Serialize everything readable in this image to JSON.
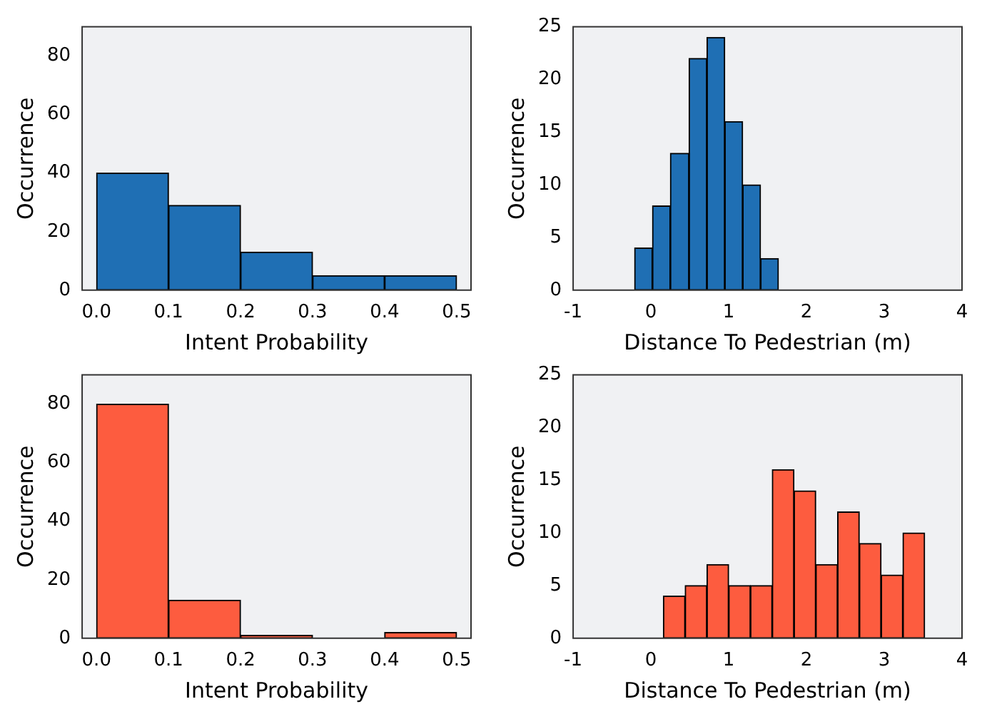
{
  "chart_data": [
    {
      "type": "histogram",
      "bins": [
        0,
        0.1,
        0.2,
        0.3,
        0.4,
        0.5
      ],
      "values": [
        40,
        29,
        13,
        5,
        5
      ],
      "color": "#1f6fb4",
      "xlabel": "Intent Probability",
      "ylabel": "Occurrence",
      "xlim": [
        -0.02,
        0.52
      ],
      "xticks": [
        {
          "value": 0,
          "label": "0.0"
        },
        0.1,
        0.2,
        0.3,
        0.4,
        0.5
      ],
      "ylim": [
        0,
        90
      ],
      "yticks": [
        0,
        20,
        40,
        60,
        80
      ]
    },
    {
      "type": "histogram",
      "bins": [
        -0.21,
        0.02,
        0.25,
        0.49,
        0.72,
        0.95,
        1.18,
        1.41,
        1.64
      ],
      "values": [
        4,
        8,
        13,
        22,
        24,
        16,
        10,
        3
      ],
      "color": "#1f6fb4",
      "xlabel": "Distance To Pedestrian (m)",
      "ylabel": "Occurrence",
      "xlim": [
        -1,
        4
      ],
      "xticks": [
        -1,
        0,
        1,
        2,
        3,
        4
      ],
      "ylim": [
        0,
        25
      ],
      "yticks": [
        0,
        5,
        10,
        15,
        20,
        25
      ]
    },
    {
      "type": "histogram",
      "bins": [
        0,
        0.1,
        0.2,
        0.3,
        0.4,
        0.5
      ],
      "values": [
        80,
        13,
        1,
        0,
        2
      ],
      "color": "#fd5c3f",
      "xlabel": "Intent Probability",
      "ylabel": "Occurrence",
      "xlim": [
        -0.02,
        0.52
      ],
      "xticks": [
        {
          "value": 0,
          "label": "0.0"
        },
        0.1,
        0.2,
        0.3,
        0.4,
        0.5
      ],
      "ylim": [
        0,
        90
      ],
      "yticks": [
        0,
        20,
        40,
        60,
        80
      ]
    },
    {
      "type": "histogram",
      "bins": [
        0.16,
        0.44,
        0.72,
        1.0,
        1.28,
        1.56,
        1.84,
        2.12,
        2.4,
        2.68,
        2.96,
        3.24,
        3.52
      ],
      "values": [
        4,
        5,
        7,
        5,
        5,
        16,
        14,
        7,
        12,
        9,
        6,
        10
      ],
      "color": "#fd5c3f",
      "xlabel": "Distance To Pedestrian (m)",
      "ylabel": "Occurrence",
      "xlim": [
        -1,
        4
      ],
      "xticks": [
        -1,
        0,
        1,
        2,
        3,
        4
      ],
      "ylim": [
        0,
        25
      ],
      "yticks": [
        0,
        5,
        10,
        15,
        20,
        25
      ]
    }
  ]
}
